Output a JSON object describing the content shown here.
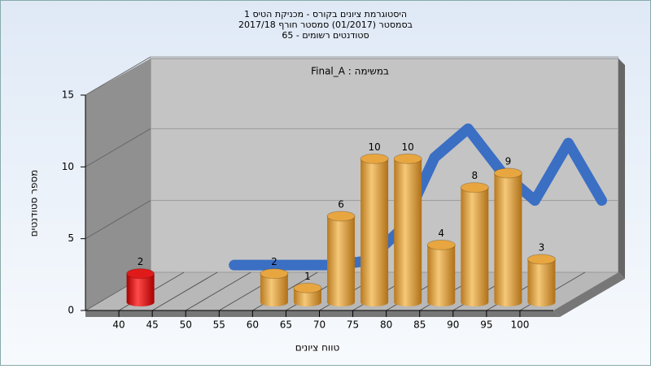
{
  "chart_data": {
    "type": "histogram",
    "title": [
      "היסטוגרמת ציונים בקורס - מכניקת הטיס 1",
      "בסמסטר (01/2017)  סמסטר חורף 2017/18",
      "סטודנטים רשומים - 65"
    ],
    "annotation": "Final_A : במשימה",
    "x_label": "טווח ציונים",
    "y_label": "מספר סטודנטים",
    "bins": [
      40,
      45,
      50,
      55,
      60,
      65,
      70,
      75,
      80,
      85,
      90,
      95,
      100,
      105
    ],
    "values": [
      2,
      0,
      0,
      0,
      2,
      1,
      6,
      10,
      10,
      4,
      8,
      9,
      3
    ],
    "colors": [
      "#e01a1a",
      "#e8a640",
      "#e8a640",
      "#e8a640",
      "#e8a640",
      "#e8a640",
      "#e8a640",
      "#e8a640",
      "#e8a640",
      "#e8a640",
      "#e8a640",
      "#e8a640",
      "#e8a640"
    ],
    "curve": {
      "color": "#3a6fc4",
      "x": [
        47.5,
        52.5,
        57.5,
        62.5,
        67.5,
        72.5,
        77.5,
        82.5,
        87.5,
        92.5,
        97.5,
        102.5
      ],
      "values": [
        0.5,
        0.5,
        0.5,
        0.5,
        0.8,
        3,
        8,
        10,
        7,
        5,
        9,
        5
      ]
    },
    "xlim": [
      35,
      105
    ],
    "xticks": [
      40,
      45,
      50,
      55,
      60,
      65,
      70,
      75,
      80,
      85,
      90,
      95,
      100
    ],
    "ylim": [
      0,
      15
    ],
    "yticks": [
      0,
      5,
      10,
      15
    ],
    "grid": true
  }
}
